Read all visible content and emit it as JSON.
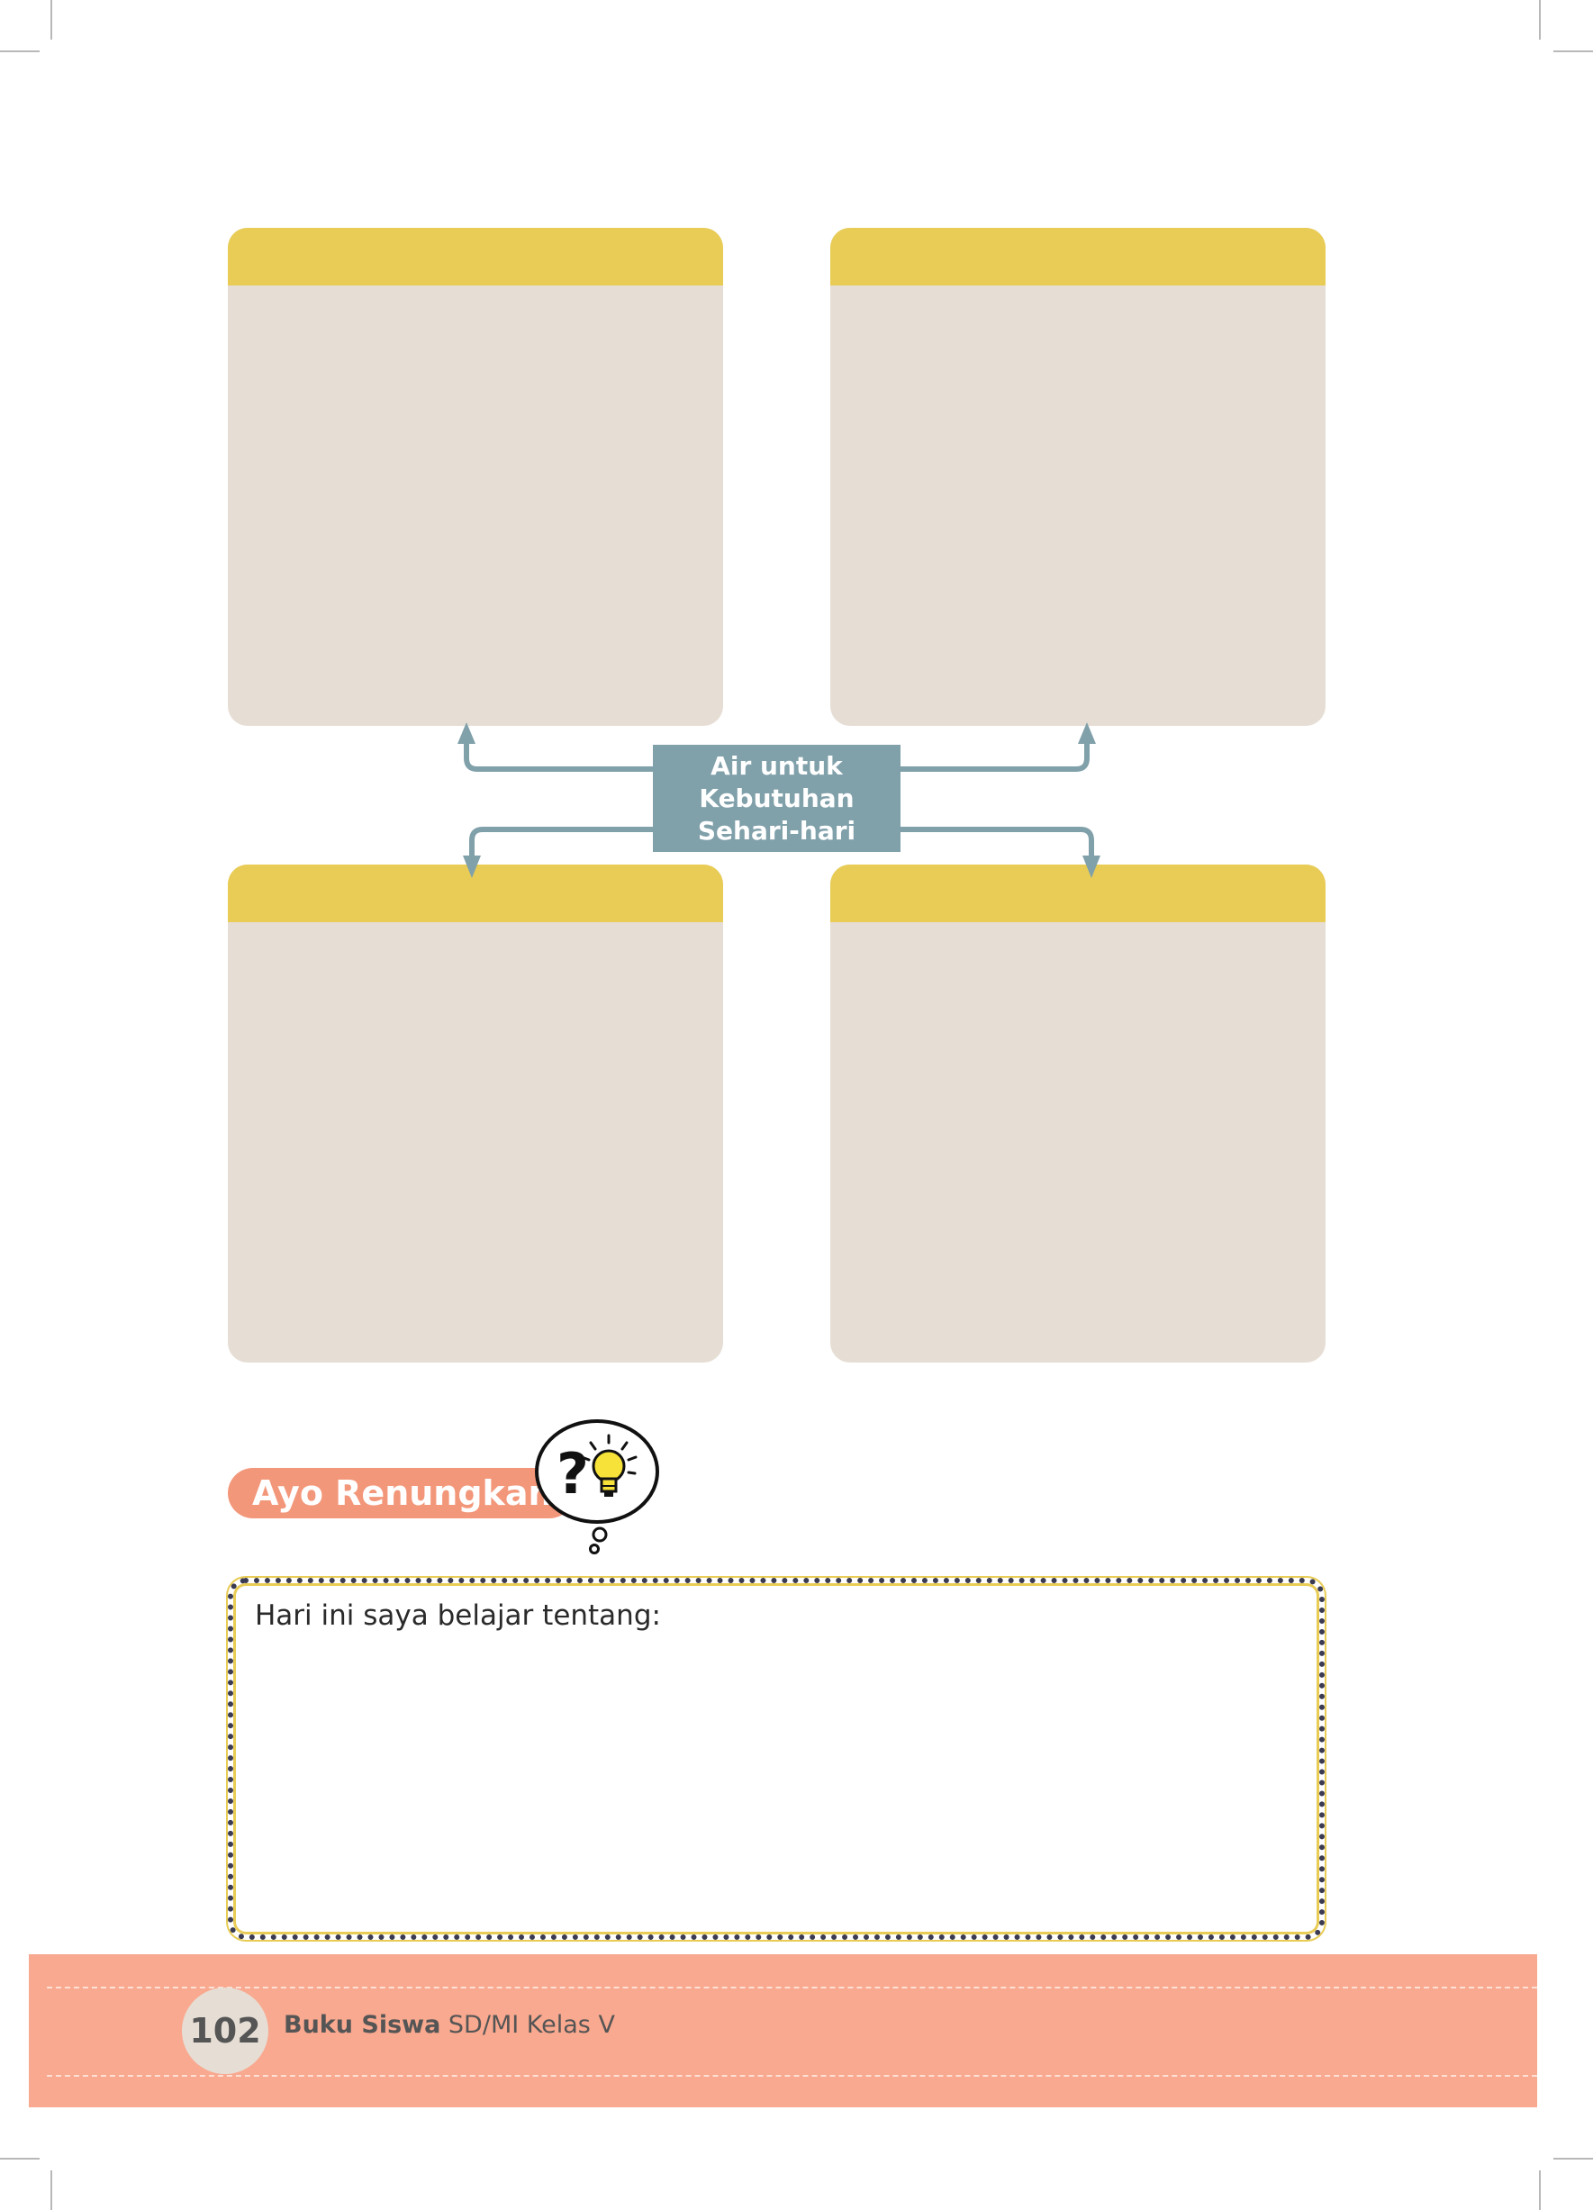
{
  "diagram": {
    "center_label_lines": [
      "Air untuk",
      "Kebutuhan",
      "Sehari-hari"
    ],
    "colors": {
      "card_body": "#e6ded5",
      "card_header": "#e8cc55",
      "hub": "#80a0aa",
      "connector": "#80a0aa"
    }
  },
  "reflection": {
    "heading": "Ayo Renungkan",
    "prompt": "Hari ini saya belajar tentang:",
    "icons": [
      "question-mark-icon",
      "lightbulb-icon",
      "thought-bubble-icon"
    ],
    "colors": {
      "pill": "#f3977a",
      "border_dots": "#3a3a52",
      "border_trim": "#e8cc55"
    }
  },
  "footer": {
    "page_number": "102",
    "book_title": "Buku Siswa",
    "book_subtitle": "SD/MI Kelas V",
    "colors": {
      "band": "#f9a98f",
      "page_circle": "#e6ded5"
    }
  }
}
